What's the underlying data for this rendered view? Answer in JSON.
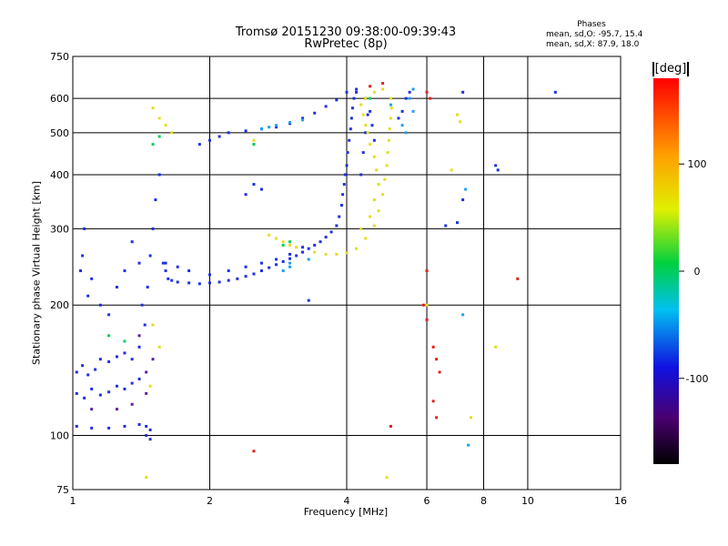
{
  "title_line1": "Tromsø 20151230 09:38:00-09:39:43",
  "title_line2": "RwPretec (8p)",
  "stats": {
    "heading": "Phases",
    "line_o": "mean, sd,O: -95.7, 15.4",
    "line_x": "mean, sd,X:  87.9, 18.0"
  },
  "colorbar": {
    "label": "[deg]",
    "ticks": [
      100,
      0,
      -100
    ],
    "range": [
      -180,
      180
    ]
  },
  "chart_data": {
    "type": "scatter",
    "xlabel": "Frequency [MHz]",
    "ylabel": "Stationary phase Virtual Height [km]",
    "x_scale": "log",
    "y_scale": "log",
    "xlim": [
      1,
      16
    ],
    "ylim": [
      75,
      750
    ],
    "x_ticks": [
      1,
      2,
      4,
      6,
      8,
      10,
      16
    ],
    "y_ticks": [
      75,
      100,
      200,
      300,
      400,
      500,
      600,
      750
    ],
    "grid": true,
    "series": [
      {
        "color": "#2030e0",
        "points": [
          [
            1.02,
            140
          ],
          [
            1.05,
            145
          ],
          [
            1.08,
            138
          ],
          [
            1.12,
            142
          ],
          [
            1.15,
            150
          ],
          [
            1.2,
            148
          ],
          [
            1.25,
            152
          ],
          [
            1.3,
            155
          ],
          [
            1.35,
            150
          ],
          [
            1.4,
            160
          ],
          [
            1.02,
            125
          ],
          [
            1.06,
            122
          ],
          [
            1.1,
            128
          ],
          [
            1.15,
            124
          ],
          [
            1.2,
            126
          ],
          [
            1.25,
            130
          ],
          [
            1.3,
            128
          ],
          [
            1.35,
            132
          ],
          [
            1.4,
            135
          ],
          [
            1.02,
            105
          ],
          [
            1.1,
            104
          ],
          [
            1.2,
            104
          ],
          [
            1.3,
            105
          ],
          [
            1.4,
            106
          ],
          [
            1.45,
            105
          ],
          [
            1.48,
            103
          ],
          [
            1.05,
            260
          ],
          [
            1.04,
            240
          ],
          [
            1.06,
            300
          ],
          [
            1.08,
            210
          ],
          [
            1.1,
            230
          ],
          [
            1.15,
            200
          ],
          [
            1.2,
            190
          ],
          [
            1.25,
            220
          ],
          [
            1.3,
            240
          ],
          [
            1.35,
            280
          ],
          [
            1.4,
            250
          ],
          [
            1.42,
            200
          ],
          [
            1.44,
            180
          ],
          [
            1.46,
            220
          ],
          [
            1.48,
            260
          ],
          [
            1.5,
            300
          ],
          [
            1.52,
            350
          ],
          [
            1.55,
            400
          ],
          [
            1.58,
            250
          ],
          [
            1.6,
            240
          ],
          [
            1.62,
            230
          ],
          [
            1.65,
            228
          ],
          [
            1.7,
            226
          ],
          [
            1.8,
            225
          ],
          [
            1.9,
            224
          ],
          [
            2.0,
            225
          ],
          [
            2.1,
            226
          ],
          [
            2.2,
            228
          ],
          [
            2.3,
            230
          ],
          [
            2.4,
            233
          ],
          [
            2.5,
            236
          ],
          [
            2.6,
            240
          ],
          [
            2.7,
            244
          ],
          [
            2.8,
            248
          ],
          [
            2.9,
            252
          ],
          [
            3.0,
            256
          ],
          [
            3.1,
            260
          ],
          [
            3.2,
            265
          ],
          [
            3.3,
            270
          ],
          [
            3.4,
            275
          ],
          [
            3.5,
            280
          ],
          [
            3.6,
            287
          ],
          [
            3.7,
            295
          ],
          [
            3.8,
            305
          ],
          [
            3.85,
            320
          ],
          [
            3.9,
            340
          ],
          [
            3.92,
            360
          ],
          [
            3.95,
            380
          ],
          [
            3.97,
            400
          ],
          [
            4.0,
            420
          ],
          [
            4.02,
            450
          ],
          [
            4.05,
            480
          ],
          [
            4.08,
            510
          ],
          [
            4.1,
            540
          ],
          [
            4.12,
            570
          ],
          [
            4.15,
            600
          ],
          [
            4.2,
            620
          ],
          [
            1.9,
            470
          ],
          [
            2.0,
            480
          ],
          [
            2.1,
            490
          ],
          [
            2.2,
            500
          ],
          [
            2.4,
            505
          ],
          [
            2.6,
            510
          ],
          [
            2.8,
            515
          ],
          [
            3.0,
            525
          ],
          [
            3.2,
            540
          ],
          [
            3.4,
            555
          ],
          [
            3.6,
            575
          ],
          [
            3.8,
            595
          ],
          [
            4.0,
            620
          ],
          [
            4.2,
            630
          ],
          [
            4.4,
            600
          ],
          [
            4.5,
            560
          ],
          [
            4.55,
            520
          ],
          [
            4.6,
            480
          ],
          [
            5.3,
            560
          ],
          [
            5.4,
            600
          ],
          [
            5.5,
            620
          ],
          [
            5.2,
            540
          ],
          [
            1.6,
            250
          ],
          [
            1.7,
            245
          ],
          [
            1.8,
            240
          ],
          [
            2.0,
            235
          ],
          [
            2.2,
            240
          ],
          [
            2.4,
            245
          ],
          [
            2.6,
            250
          ],
          [
            2.8,
            255
          ],
          [
            3.0,
            262
          ],
          [
            3.2,
            272
          ],
          [
            4.3,
            400
          ],
          [
            4.35,
            450
          ],
          [
            4.4,
            500
          ],
          [
            4.45,
            550
          ],
          [
            2.5,
            380
          ],
          [
            2.6,
            370
          ],
          [
            2.4,
            360
          ],
          [
            7.2,
            620
          ],
          [
            8.5,
            420
          ],
          [
            8.6,
            410
          ],
          [
            11.5,
            620
          ],
          [
            7.2,
            350
          ],
          [
            7.0,
            310
          ],
          [
            6.6,
            305
          ],
          [
            3.3,
            205
          ],
          [
            1.48,
            98
          ],
          [
            1.45,
            100
          ]
        ]
      },
      {
        "color": "#20a0f0",
        "points": [
          [
            2.6,
            510
          ],
          [
            2.7,
            515
          ],
          [
            2.8,
            520
          ],
          [
            3.0,
            528
          ],
          [
            3.2,
            535
          ],
          [
            2.9,
            240
          ],
          [
            3.0,
            245
          ],
          [
            3.3,
            255
          ],
          [
            5.5,
            600
          ],
          [
            5.6,
            630
          ],
          [
            5.6,
            560
          ],
          [
            5.3,
            520
          ],
          [
            5.4,
            500
          ],
          [
            7.4,
            95
          ],
          [
            7.2,
            190
          ],
          [
            7.3,
            370
          ],
          [
            3.0,
            250
          ],
          [
            2.5,
            470
          ],
          [
            5.0,
            580
          ]
        ]
      },
      {
        "color": "#00d060",
        "points": [
          [
            2.9,
            275
          ],
          [
            3.0,
            280
          ],
          [
            4.5,
            600
          ],
          [
            1.2,
            170
          ],
          [
            1.3,
            165
          ],
          [
            1.55,
            490
          ],
          [
            2.5,
            470
          ],
          [
            1.5,
            470
          ]
        ]
      },
      {
        "color": "#e0e020",
        "points": [
          [
            1.5,
            570
          ],
          [
            1.55,
            540
          ],
          [
            1.6,
            520
          ],
          [
            1.65,
            500
          ],
          [
            2.7,
            290
          ],
          [
            2.8,
            285
          ],
          [
            2.9,
            280
          ],
          [
            3.0,
            275
          ],
          [
            3.1,
            272
          ],
          [
            3.4,
            265
          ],
          [
            3.6,
            262
          ],
          [
            3.8,
            262
          ],
          [
            4.0,
            264
          ],
          [
            4.2,
            270
          ],
          [
            4.4,
            285
          ],
          [
            4.6,
            305
          ],
          [
            4.7,
            330
          ],
          [
            4.8,
            360
          ],
          [
            4.85,
            390
          ],
          [
            4.9,
            420
          ],
          [
            4.92,
            450
          ],
          [
            4.95,
            480
          ],
          [
            4.97,
            510
          ],
          [
            5.0,
            540
          ],
          [
            5.02,
            570
          ],
          [
            5.0,
            600
          ],
          [
            4.8,
            630
          ],
          [
            4.6,
            620
          ],
          [
            4.4,
            600
          ],
          [
            4.3,
            580
          ],
          [
            4.35,
            550
          ],
          [
            4.4,
            520
          ],
          [
            4.45,
            500
          ],
          [
            4.5,
            470
          ],
          [
            4.6,
            440
          ],
          [
            4.65,
            410
          ],
          [
            4.7,
            380
          ],
          [
            4.6,
            350
          ],
          [
            4.5,
            320
          ],
          [
            4.3,
            300
          ],
          [
            1.5,
            180
          ],
          [
            1.55,
            160
          ],
          [
            1.48,
            130
          ],
          [
            1.45,
            80
          ],
          [
            4.9,
            80
          ],
          [
            2.5,
            480
          ],
          [
            6.8,
            410
          ],
          [
            7.1,
            530
          ],
          [
            7.0,
            550
          ],
          [
            6.0,
            200
          ],
          [
            7.5,
            110
          ],
          [
            8.5,
            160
          ]
        ]
      },
      {
        "color": "#e02020",
        "points": [
          [
            6.0,
            620
          ],
          [
            6.1,
            600
          ],
          [
            6.2,
            160
          ],
          [
            6.3,
            150
          ],
          [
            6.4,
            140
          ],
          [
            6.2,
            120
          ],
          [
            6.3,
            110
          ],
          [
            5.0,
            105
          ],
          [
            2.5,
            92
          ],
          [
            9.5,
            230
          ],
          [
            4.5,
            640
          ],
          [
            6.0,
            240
          ],
          [
            5.9,
            200
          ],
          [
            6.0,
            185
          ],
          [
            4.8,
            650
          ]
        ]
      },
      {
        "color": "#6020a0",
        "points": [
          [
            1.1,
            115
          ],
          [
            1.25,
            115
          ],
          [
            1.35,
            118
          ],
          [
            1.45,
            125
          ],
          [
            1.4,
            170
          ],
          [
            1.45,
            140
          ],
          [
            1.5,
            150
          ]
        ]
      }
    ]
  }
}
